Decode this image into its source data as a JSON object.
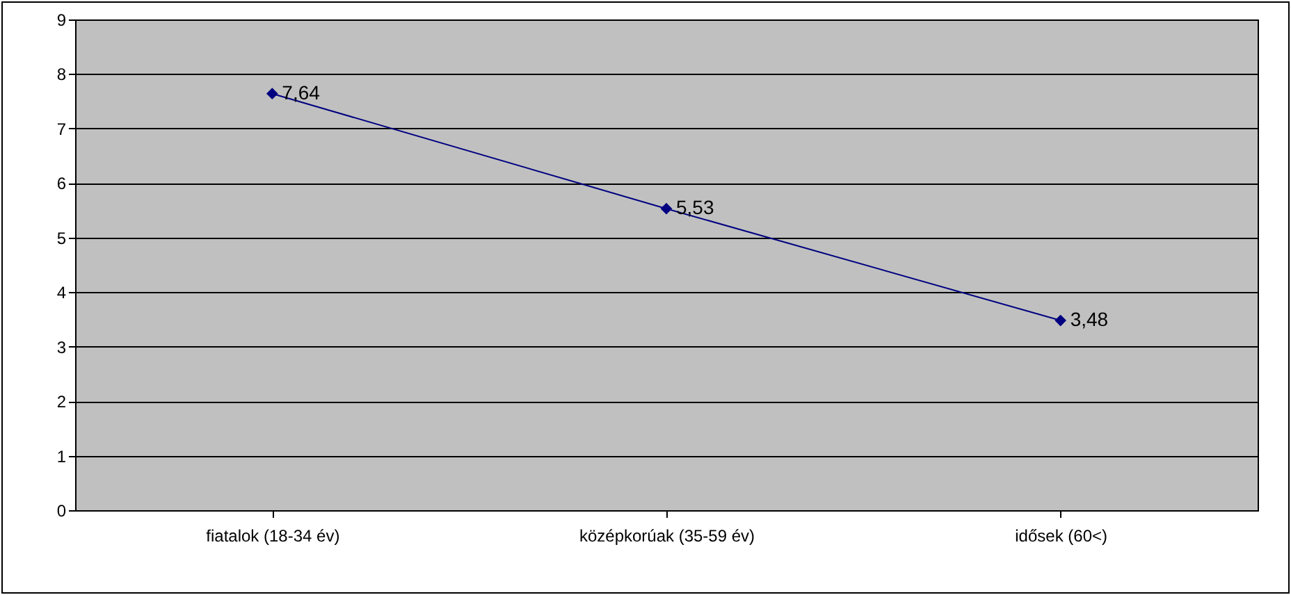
{
  "chart_data": {
    "type": "line",
    "categories": [
      "fiatalok (18-34 év)",
      "középkorúak (35-59 év)",
      "idősek (60<)"
    ],
    "series": [
      {
        "color": "#000080",
        "values": [
          7.64,
          5.53,
          3.48
        ],
        "value_labels": [
          "7,64",
          "5,53",
          "3,48"
        ]
      }
    ],
    "ylim": [
      0,
      9
    ],
    "yticks": [
      0,
      1,
      2,
      3,
      4,
      5,
      6,
      7,
      8,
      9
    ],
    "grid": "y",
    "marker": "diamond",
    "line_style": "solid"
  }
}
